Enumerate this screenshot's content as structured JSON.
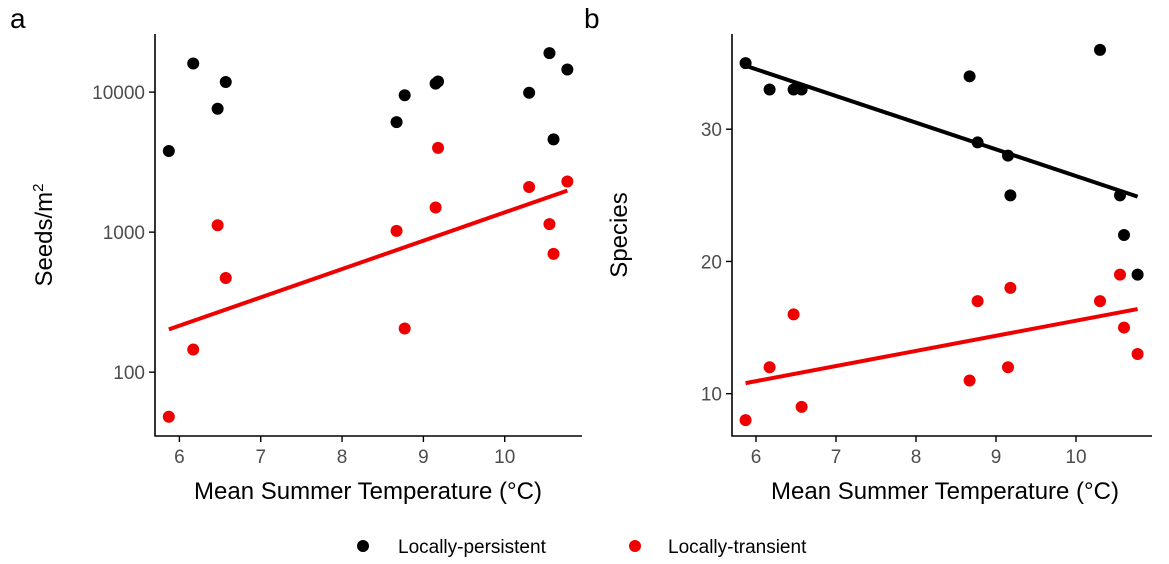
{
  "colors": {
    "persistent": "#000000",
    "transient": "#ee0000",
    "axis": "#000000",
    "tick_text": "#4d4d4d"
  },
  "legend": {
    "items": [
      {
        "label": "Locally-persistent",
        "color": "#000000"
      },
      {
        "label": "Locally-transient",
        "color": "#ee0000"
      }
    ],
    "placement": "bottom"
  },
  "chart_data": [
    {
      "type": "scatter",
      "panel_label": "a",
      "xlabel": "Mean Summer Temperature (°C)",
      "ylabel": "Seeds/m",
      "ylabel_superscript": "2",
      "xlim": [
        5.7,
        10.95
      ],
      "ylim": [
        35,
        26000
      ],
      "y_scale": "log10",
      "x_ticks": [
        6,
        7,
        8,
        9,
        10
      ],
      "y_ticks": [
        100,
        1000,
        10000
      ],
      "grid": false,
      "series": [
        {
          "name": "Locally-persistent",
          "color": "#000000",
          "x": [
            5.87,
            6.17,
            6.47,
            6.57,
            8.67,
            8.77,
            9.15,
            9.18,
            10.3,
            10.55,
            10.6,
            10.77
          ],
          "y": [
            3800,
            16000,
            7600,
            11800,
            6100,
            9500,
            11500,
            11900,
            9900,
            19000,
            4600,
            14500
          ]
        },
        {
          "name": "Locally-transient",
          "color": "#ee0000",
          "x": [
            5.87,
            6.17,
            6.47,
            6.57,
            8.67,
            8.77,
            9.15,
            9.18,
            10.3,
            10.55,
            10.6,
            10.77
          ],
          "y": [
            48,
            145,
            1120,
            470,
            1020,
            205,
            1500,
            4000,
            2100,
            1140,
            700,
            2300
          ]
        }
      ],
      "trend_lines": [
        {
          "color": "#ee0000",
          "x": [
            5.87,
            10.77
          ],
          "y": [
            202,
            1980
          ]
        }
      ]
    },
    {
      "type": "scatter",
      "panel_label": "b",
      "xlabel": "Mean Summer Temperature (°C)",
      "ylabel": "Species",
      "ylabel_superscript": "",
      "xlim": [
        5.7,
        10.95
      ],
      "ylim": [
        6.8,
        37.2
      ],
      "y_scale": "linear",
      "x_ticks": [
        6,
        7,
        8,
        9,
        10
      ],
      "y_ticks": [
        10,
        20,
        30
      ],
      "grid": false,
      "series": [
        {
          "name": "Locally-persistent",
          "color": "#000000",
          "x": [
            5.87,
            6.17,
            6.47,
            6.57,
            8.67,
            8.77,
            9.15,
            9.18,
            10.3,
            10.55,
            10.6,
            10.77
          ],
          "y": [
            35,
            33,
            33,
            33,
            34,
            29,
            28,
            25,
            36,
            25,
            22,
            19
          ]
        },
        {
          "name": "Locally-transient",
          "color": "#ee0000",
          "x": [
            5.87,
            6.17,
            6.47,
            6.57,
            8.67,
            8.77,
            9.15,
            9.18,
            10.3,
            10.55,
            10.6,
            10.77
          ],
          "y": [
            8,
            12,
            16,
            9,
            11,
            17,
            12,
            18,
            17,
            19,
            15,
            13
          ]
        }
      ],
      "trend_lines": [
        {
          "color": "#000000",
          "x": [
            5.87,
            10.77
          ],
          "y": [
            34.8,
            24.9
          ]
        },
        {
          "color": "#ee0000",
          "x": [
            5.87,
            10.77
          ],
          "y": [
            10.8,
            16.4
          ]
        }
      ]
    }
  ]
}
